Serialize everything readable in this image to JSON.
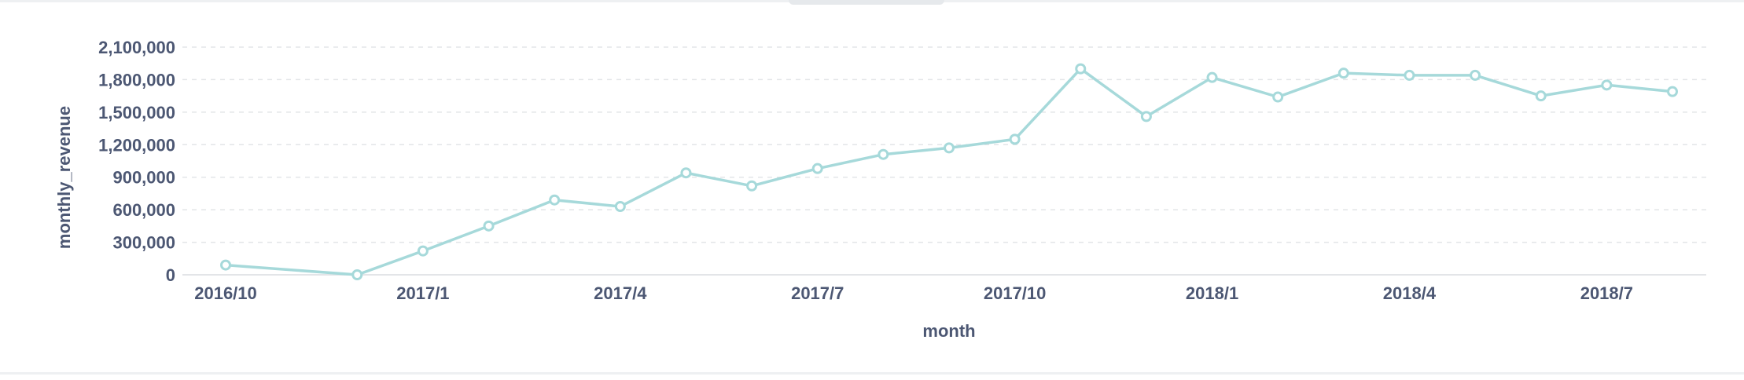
{
  "chart_data": {
    "type": "line",
    "xlabel": "month",
    "ylabel": "monthly_revenue",
    "x": [
      "2016/10",
      "2016/12",
      "2017/1",
      "2017/2",
      "2017/3",
      "2017/4",
      "2017/5",
      "2017/6",
      "2017/7",
      "2017/8",
      "2017/9",
      "2017/10",
      "2017/11",
      "2017/12",
      "2018/1",
      "2018/2",
      "2018/3",
      "2018/4",
      "2018/5",
      "2018/6",
      "2018/7",
      "2018/8"
    ],
    "series": [
      {
        "values": [
          90000,
          0,
          220000,
          450000,
          690000,
          630000,
          940000,
          820000,
          980000,
          1110000,
          1170000,
          1250000,
          1900000,
          1460000,
          1820000,
          1640000,
          1860000,
          1840000,
          1840000,
          1650000,
          1750000,
          1690000
        ],
        "color": "#a6d9da"
      }
    ],
    "xticks": [
      "2016/10",
      "2017/1",
      "2017/4",
      "2017/7",
      "2017/10",
      "2018/1",
      "2018/4",
      "2018/7"
    ],
    "yticks": [
      "0",
      "300,000",
      "600,000",
      "900,000",
      "1,200,000",
      "1,500,000",
      "1,800,000",
      "2,100,000"
    ],
    "ylim": [
      0,
      2100000
    ],
    "grid": "horizontal-dashed",
    "axis_text_color": "#4c5773",
    "grid_color": "#e3e5e8"
  }
}
